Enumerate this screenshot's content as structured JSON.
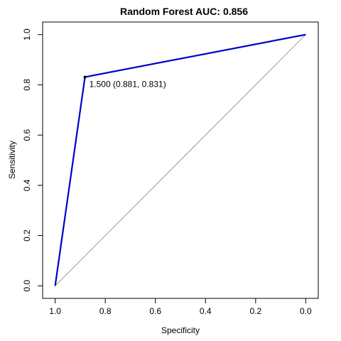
{
  "chart_data": {
    "type": "line",
    "title": "Random Forest AUC: 0.856",
    "xlabel": "Specificity",
    "ylabel": "Sensitivity",
    "x_reversed": true,
    "xlim": [
      1.05,
      -0.05
    ],
    "ylim": [
      -0.05,
      1.05
    ],
    "x_ticks": [
      1.0,
      0.8,
      0.6,
      0.4,
      0.2,
      0.0
    ],
    "x_tick_labels": [
      "1.0",
      "0.8",
      "0.6",
      "0.4",
      "0.2",
      "0.0"
    ],
    "y_ticks": [
      0.0,
      0.2,
      0.4,
      0.6,
      0.8,
      1.0
    ],
    "y_tick_labels": [
      "0.0",
      "0.2",
      "0.4",
      "0.6",
      "0.8",
      "1.0"
    ],
    "grid": false,
    "series": [
      {
        "specificity": [
          1.0,
          0.881,
          0.0
        ],
        "sensitivity": [
          0.0,
          0.831,
          1.0
        ],
        "color": "#0000cc"
      }
    ],
    "reference_line": {
      "from": [
        1.0,
        0.0
      ],
      "to": [
        0.0,
        1.0
      ],
      "color": "#9a9a9a"
    },
    "threshold_point": {
      "specificity": 0.881,
      "sensitivity": 0.831,
      "label": "1.500 (0.881, 0.831)"
    }
  }
}
